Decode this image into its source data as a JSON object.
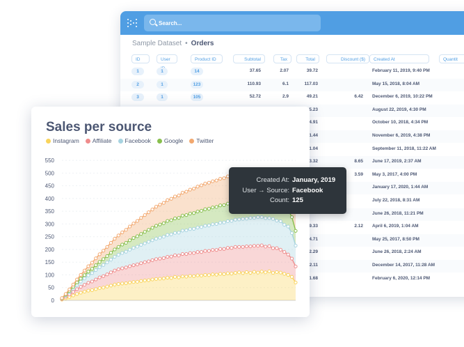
{
  "search": {
    "placeholder": "Search..."
  },
  "breadcrumb": {
    "parent": "Sample Dataset",
    "separator": "•",
    "current": "Orders"
  },
  "table": {
    "columns": [
      "ID",
      "User ID",
      "Product ID",
      "Subtotal",
      "Tax",
      "Total",
      "Discount ($)",
      "Created At",
      "Quantit"
    ],
    "rows": [
      {
        "id": "1",
        "user": "1",
        "product": "14",
        "subtotal": "37.65",
        "tax": "2.07",
        "total": "39.72",
        "discount": "",
        "created": "February 11, 2019, 9:40 PM"
      },
      {
        "id": "2",
        "user": "1",
        "product": "123",
        "subtotal": "110.93",
        "tax": "6.1",
        "total": "117.03",
        "discount": "",
        "created": "May 15, 2018, 8:04 AM"
      },
      {
        "id": "3",
        "user": "1",
        "product": "105",
        "subtotal": "52.72",
        "tax": "2.9",
        "total": "49.21",
        "discount": "6.42",
        "created": "December 6, 2019, 10:22 PM"
      },
      {
        "id": "",
        "user": "",
        "product": "",
        "subtotal": "",
        "tax": "",
        "total": "5.23",
        "discount": "",
        "created": "August 22, 2019, 4:30 PM"
      },
      {
        "id": "",
        "user": "",
        "product": "",
        "subtotal": "",
        "tax": "",
        "total": "4.91",
        "discount": "",
        "created": "October 10, 2018, 4:34 PM"
      },
      {
        "id": "",
        "user": "",
        "product": "",
        "subtotal": "",
        "tax": "",
        "total": "1.44",
        "discount": "",
        "created": "November 6, 2019, 4:38 PM"
      },
      {
        "id": "",
        "user": "",
        "product": "",
        "subtotal": "",
        "tax": "",
        "total": "1.04",
        "discount": "",
        "created": "September 11, 2018, 11:22 AM"
      },
      {
        "id": "",
        "user": "",
        "product": "",
        "subtotal": "",
        "tax": "",
        "total": "3.32",
        "discount": "8.65",
        "created": "June 17, 2019, 2:37 AM"
      },
      {
        "id": "",
        "user": "",
        "product": "",
        "subtotal": "",
        "tax": "",
        "total": "",
        "discount": "3.59",
        "created": "May 3, 2017, 4:00 PM"
      },
      {
        "id": "",
        "user": "",
        "product": "",
        "subtotal": "",
        "tax": "",
        "total": "",
        "discount": "",
        "created": "January 17, 2020, 1:44 AM"
      },
      {
        "id": "",
        "user": "",
        "product": "",
        "subtotal": "",
        "tax": "",
        "total": "",
        "discount": "",
        "created": "July 22, 2018, 8:31 AM"
      },
      {
        "id": "",
        "user": "",
        "product": "",
        "subtotal": "",
        "tax": "",
        "total": "",
        "discount": "",
        "created": "June 26, 2018, 11:21 PM"
      },
      {
        "id": "",
        "user": "",
        "product": "",
        "subtotal": "",
        "tax": "",
        "total": "9.33",
        "discount": "2.12",
        "created": "April 6, 2019, 1:04 AM"
      },
      {
        "id": "",
        "user": "",
        "product": "",
        "subtotal": "",
        "tax": "",
        "total": "4.71",
        "discount": "",
        "created": "May 25, 2017, 8:50 PM"
      },
      {
        "id": "",
        "user": "",
        "product": "",
        "subtotal": "",
        "tax": "",
        "total": "2.29",
        "discount": "",
        "created": "June 26, 2018, 2:24 AM"
      },
      {
        "id": "",
        "user": "",
        "product": "",
        "subtotal": "",
        "tax": "",
        "total": "2.11",
        "discount": "",
        "created": "December 14, 2017, 11:28 AM"
      },
      {
        "id": "",
        "user": "",
        "product": "",
        "subtotal": "",
        "tax": "",
        "total": "1.68",
        "discount": "",
        "created": "February 6, 2020, 12:14 PM"
      }
    ]
  },
  "tooltip": {
    "rows": [
      {
        "key": "Created At:",
        "value": "January, 2019"
      },
      {
        "key": "User → Source:",
        "value": "Facebook"
      },
      {
        "key": "Count:",
        "value": "125"
      }
    ]
  },
  "colors": {
    "brand": "#509ee3",
    "instagram": "#f9d45c",
    "affiliate": "#ef8c8c",
    "facebook": "#a7d3e0",
    "google": "#88bf4d",
    "twitter": "#f2a86f"
  },
  "chart_data": {
    "type": "area",
    "stacked": true,
    "title": "Sales per source",
    "xlabel": "",
    "ylabel": "",
    "ylim": [
      0,
      575
    ],
    "yticks": [
      0,
      50,
      100,
      150,
      200,
      250,
      300,
      350,
      400,
      450,
      500,
      550
    ],
    "grid": true,
    "legend_position": "top-left",
    "series": [
      {
        "name": "Instagram",
        "color": "#f9d45c",
        "values": [
          3,
          8,
          13,
          19,
          25,
          30,
          34,
          38,
          40,
          44,
          48,
          50,
          54,
          58,
          62,
          64,
          66,
          67,
          70,
          72,
          73,
          76,
          78,
          79,
          82,
          84,
          85,
          86,
          89,
          88,
          92,
          90,
          94,
          93,
          96,
          95,
          98,
          97,
          100,
          99,
          102,
          101,
          104,
          103,
          106,
          105,
          108,
          110,
          107,
          111,
          108,
          112,
          109,
          113,
          110,
          114,
          108,
          111,
          109,
          104,
          100,
          92,
          70
        ]
      },
      {
        "name": "Affiliate",
        "color": "#ef8c8c",
        "values": [
          2,
          6,
          10,
          14,
          19,
          23,
          27,
          31,
          34,
          38,
          42,
          45,
          48,
          52,
          55,
          58,
          60,
          62,
          64,
          66,
          68,
          70,
          72,
          74,
          76,
          78,
          79,
          80,
          82,
          84,
          85,
          86,
          88,
          89,
          90,
          91,
          92,
          93,
          94,
          95,
          96,
          97,
          98,
          99,
          100,
          101,
          102,
          100,
          103,
          101,
          104,
          102,
          105,
          103,
          101,
          99,
          97,
          94,
          90,
          86,
          80,
          72,
          63
        ]
      },
      {
        "name": "Facebook",
        "color": "#a7d3e0",
        "values": [
          2,
          5,
          9,
          13,
          17,
          21,
          25,
          29,
          33,
          37,
          40,
          44,
          47,
          50,
          54,
          57,
          60,
          62,
          65,
          68,
          70,
          72,
          74,
          77,
          78,
          80,
          82,
          84,
          86,
          87,
          88,
          90,
          92,
          93,
          94,
          95,
          96,
          98,
          99,
          100,
          101,
          102,
          103,
          104,
          105,
          106,
          107,
          108,
          110,
          109,
          112,
          110,
          113,
          111,
          112,
          110,
          115,
          108,
          112,
          107,
          110,
          100,
          82
        ]
      },
      {
        "name": "Google",
        "color": "#88bf4d",
        "values": [
          1,
          3,
          5,
          7,
          9,
          11,
          13,
          15,
          17,
          19,
          21,
          23,
          25,
          27,
          29,
          31,
          33,
          35,
          37,
          39,
          41,
          43,
          45,
          47,
          49,
          51,
          52,
          53,
          55,
          56,
          57,
          58,
          59,
          60,
          61,
          62,
          63,
          64,
          65,
          66,
          66,
          67,
          68,
          68,
          69,
          70,
          71,
          70,
          72,
          71,
          73,
          70,
          72,
          69,
          71,
          68,
          70,
          67,
          69,
          65,
          66,
          63,
          58
        ]
      },
      {
        "name": "Twitter",
        "color": "#f2a86f",
        "values": [
          1,
          3,
          6,
          9,
          12,
          15,
          18,
          21,
          24,
          27,
          30,
          33,
          36,
          39,
          42,
          45,
          48,
          51,
          54,
          57,
          60,
          63,
          66,
          69,
          72,
          75,
          78,
          80,
          82,
          84,
          86,
          88,
          90,
          92,
          94,
          96,
          98,
          100,
          101,
          102,
          103,
          104,
          105,
          106,
          107,
          108,
          109,
          110,
          112,
          111,
          113,
          110,
          114,
          112,
          115,
          111,
          116,
          110,
          114,
          112,
          115,
          110,
          118
        ]
      }
    ]
  }
}
